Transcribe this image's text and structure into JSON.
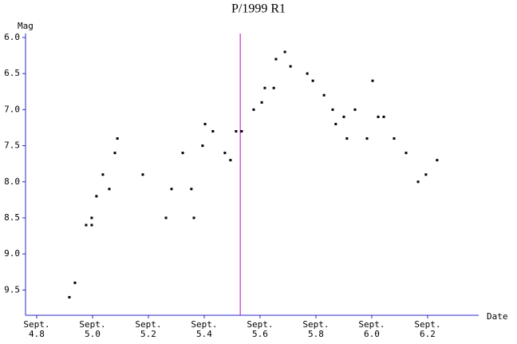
{
  "chart_data": {
    "type": "scatter",
    "title": "P/1999 R1",
    "y_label": "Mag",
    "x_label": "Date",
    "xlim": [
      4.76,
      6.383
    ],
    "ylim": [
      9.85,
      5.945
    ],
    "xticks": [
      {
        "value": 4.8,
        "label": "Sept. 4.8"
      },
      {
        "value": 5.0,
        "label": "Sept. 5.0"
      },
      {
        "value": 5.2,
        "label": "Sept. 5.2"
      },
      {
        "value": 5.4,
        "label": "Sept. 5.4"
      },
      {
        "value": 5.6,
        "label": "Sept. 5.6"
      },
      {
        "value": 5.8,
        "label": "Sept. 5.8"
      },
      {
        "value": 6.0,
        "label": "Sept. 6.0"
      },
      {
        "value": 6.2,
        "label": "Sept. 6.2"
      }
    ],
    "yticks": [
      {
        "value": 6,
        "label": "6.0"
      },
      6.5,
      {
        "value": 7,
        "label": "7.0"
      },
      7.5,
      {
        "value": 8,
        "label": "8.0"
      },
      8.5,
      {
        "value": 9,
        "label": "9.0"
      },
      9.5
    ],
    "axis_color": "#2828c8",
    "marker_line": {
      "x": 5.529,
      "color": "#c000c0"
    },
    "series": [
      {
        "color": "#000000",
        "x": [
          4.917,
          4.937,
          4.977,
          4.997,
          4.997,
          5.014,
          5.037,
          5.06,
          5.08,
          5.089,
          5.18,
          5.263,
          5.283,
          5.323,
          5.354,
          5.363,
          5.394,
          5.403,
          5.431,
          5.474,
          5.494,
          5.514,
          5.534,
          5.577,
          5.606,
          5.617,
          5.649,
          5.657,
          5.689,
          5.709,
          5.769,
          5.789,
          5.829,
          5.86,
          5.871,
          5.9,
          5.911,
          5.94,
          5.983,
          6.003,
          6.023,
          6.043,
          6.08,
          6.123,
          6.166,
          6.194,
          6.234
        ],
        "values": [
          9.6,
          9.4,
          8.6,
          8.6,
          8.5,
          8.2,
          7.9,
          8.1,
          7.6,
          7.4,
          7.9,
          8.5,
          8.1,
          7.6,
          8.1,
          8.5,
          7.5,
          7.2,
          7.3,
          7.6,
          7.7,
          7.3,
          7.3,
          7.0,
          6.9,
          6.7,
          6.7,
          6.3,
          6.2,
          6.4,
          6.5,
          6.6,
          6.8,
          7.0,
          7.2,
          7.1,
          7.4,
          7.0,
          7.4,
          6.6,
          7.1,
          7.1,
          7.4,
          7.6,
          8.0,
          7.9,
          7.7
        ]
      }
    ]
  }
}
